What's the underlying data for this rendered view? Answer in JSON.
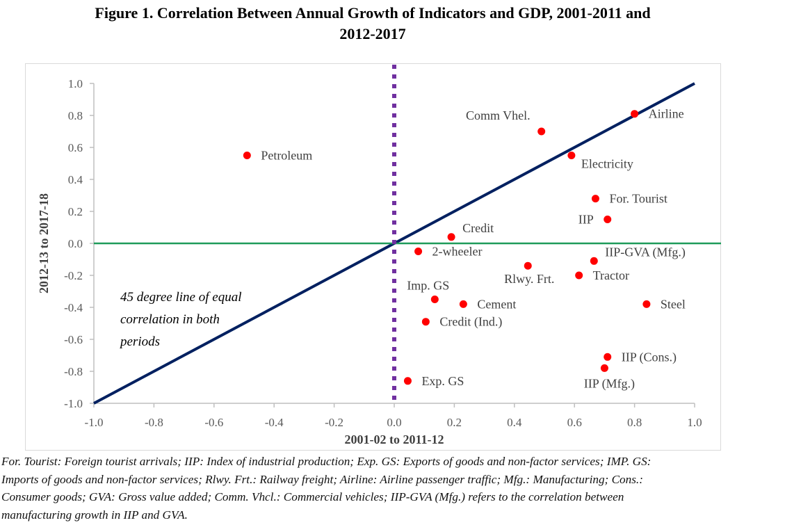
{
  "figure_title_line1": "Figure 1. Correlation Between Annual Growth of Indicators and GDP, 2001-2011 and",
  "figure_title_line2": "2012-2017",
  "colors": {
    "point": "#ff0000",
    "diagonal": "#002060",
    "zero_horizontal": "#1e9b5a",
    "zero_vertical": "#7030a0",
    "axis": "#bfbfbf"
  },
  "chart_data": {
    "type": "scatter",
    "title": "Figure 1. Correlation Between Annual Growth of Indicators and GDP, 2001-2011 and 2012-2017",
    "xlabel": "2001-02 to 2011-12",
    "ylabel": "2012-13 to 2017-18",
    "xlim": [
      -1.0,
      1.0
    ],
    "ylim": [
      -1.0,
      1.0
    ],
    "xticks": [
      "-1.0",
      "-0.8",
      "-0.6",
      "-0.4",
      "-0.2",
      "0.0",
      "0.2",
      "0.4",
      "0.6",
      "0.8",
      "1.0"
    ],
    "yticks": [
      "1.0",
      "0.8",
      "0.6",
      "0.4",
      "0.2",
      "0.0",
      "-0.2",
      "-0.4",
      "-0.6",
      "-0.8",
      "-1.0"
    ],
    "grid": false,
    "legend": "none",
    "reference_lines": [
      {
        "name": "45 degree line",
        "from": [
          -1.0,
          -1.0
        ],
        "to": [
          1.0,
          1.0
        ],
        "style": "solid"
      },
      {
        "name": "y = 0",
        "y": 0.0,
        "style": "solid"
      },
      {
        "name": "x = 0",
        "x": 0.0,
        "style": "dotted"
      }
    ],
    "annotation": [
      "45 degree line of equal",
      "correlation in both",
      "periods"
    ],
    "points": [
      {
        "label": "Petroleum",
        "x": -0.49,
        "y": 0.55,
        "label_pos": "right"
      },
      {
        "label": "Comm Vhel.",
        "x": 0.49,
        "y": 0.7,
        "label_pos": "upper-left"
      },
      {
        "label": "Airline",
        "x": 0.8,
        "y": 0.81,
        "label_pos": "right"
      },
      {
        "label": "Electricity",
        "x": 0.59,
        "y": 0.55,
        "label_pos": "lower-right"
      },
      {
        "label": "For. Tourist",
        "x": 0.67,
        "y": 0.28,
        "label_pos": "right"
      },
      {
        "label": "IIP",
        "x": 0.71,
        "y": 0.15,
        "label_pos": "left"
      },
      {
        "label": "Credit",
        "x": 0.19,
        "y": 0.04,
        "label_pos": "upper-right"
      },
      {
        "label": "2-wheeler",
        "x": 0.08,
        "y": -0.05,
        "label_pos": "right"
      },
      {
        "label": "IIP-GVA (Mfg.)",
        "x": 0.665,
        "y": -0.11,
        "label_pos": "upper-right"
      },
      {
        "label": "Rlwy. Frt.",
        "x": 0.445,
        "y": -0.14,
        "label_pos": "below"
      },
      {
        "label": "Tractor",
        "x": 0.615,
        "y": -0.2,
        "label_pos": "right"
      },
      {
        "label": "Imp. GS",
        "x": 0.135,
        "y": -0.35,
        "label_pos": "above"
      },
      {
        "label": "Cement",
        "x": 0.23,
        "y": -0.38,
        "label_pos": "right"
      },
      {
        "label": "Steel",
        "x": 0.84,
        "y": -0.38,
        "label_pos": "right"
      },
      {
        "label": "Credit (Ind.)",
        "x": 0.105,
        "y": -0.49,
        "label_pos": "right"
      },
      {
        "label": "IIP (Cons.)",
        "x": 0.71,
        "y": -0.71,
        "label_pos": "right"
      },
      {
        "label": "IIP (Mfg.)",
        "x": 0.7,
        "y": -0.78,
        "label_pos": "below"
      },
      {
        "label": "Exp. GS",
        "x": 0.045,
        "y": -0.86,
        "label_pos": "right"
      }
    ]
  },
  "footnote": [
    "For. Tourist: Foreign tourist arrivals; IIP: Index of industrial production; Exp. GS: Exports of goods and non-factor services; IMP. GS:",
    "Imports of goods and non-factor services; Rlwy. Frt.: Railway freight; Airline: Airline passenger traffic; Mfg.: Manufacturing; Cons.:",
    "Consumer goods; GVA: Gross value added; Comm. Vhcl.: Commercial vehicles; IIP-GVA (Mfg.) refers to the correlation between",
    "manufacturing growth in IIP and GVA."
  ]
}
